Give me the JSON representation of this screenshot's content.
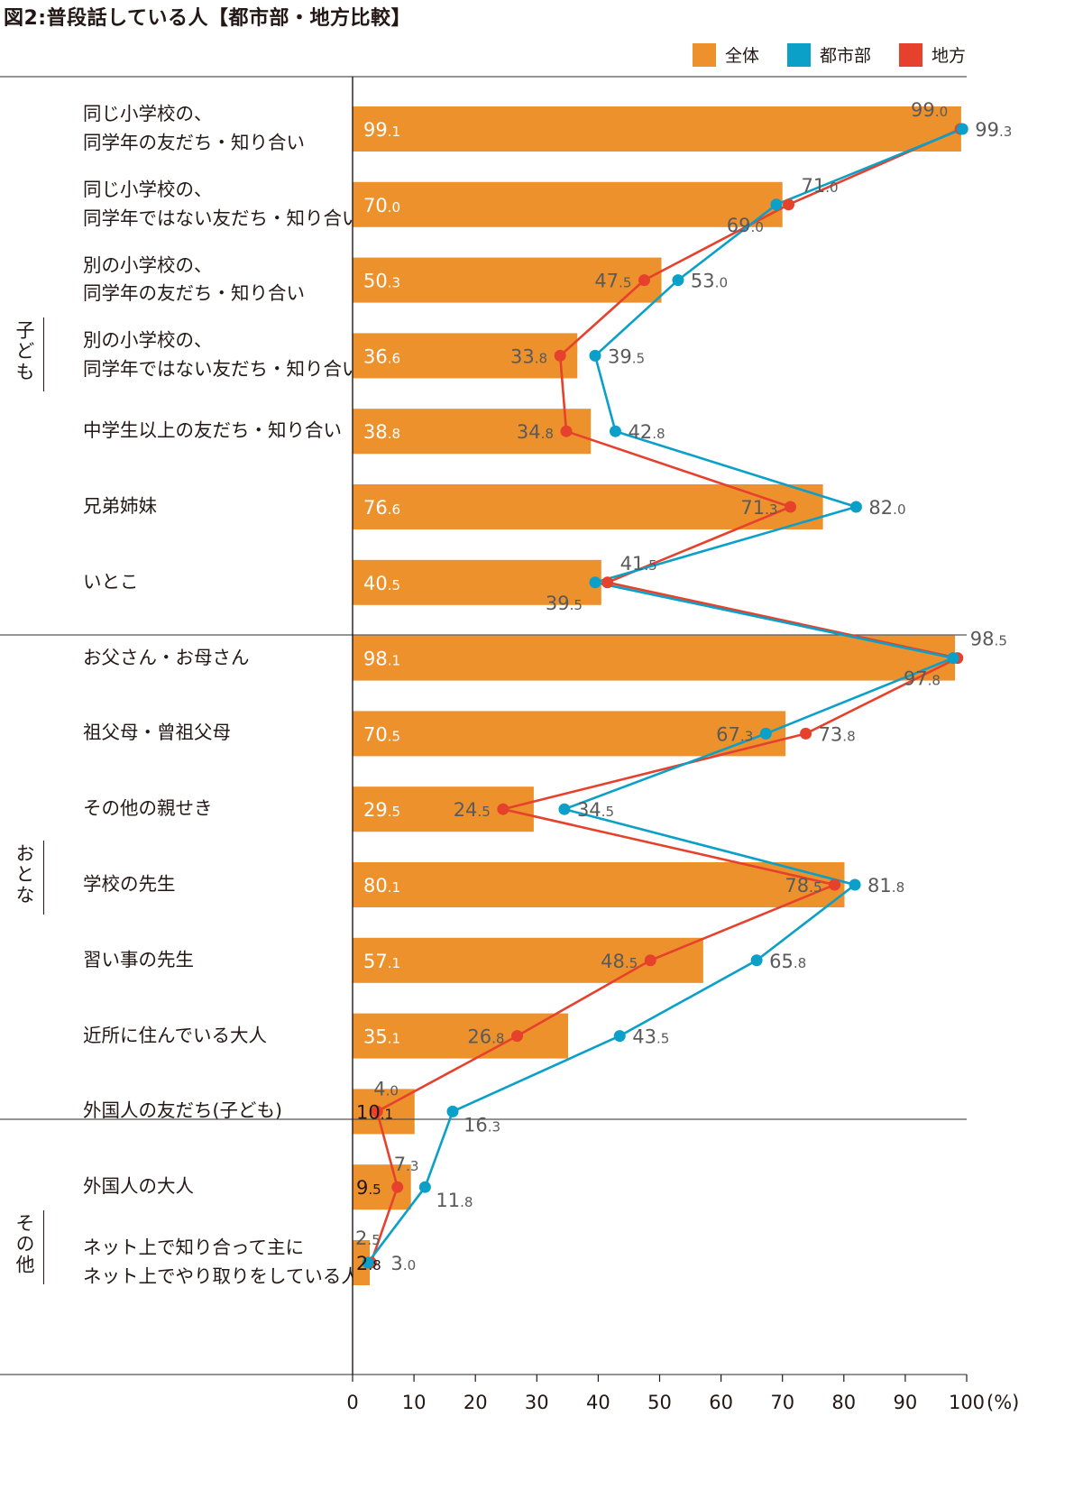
{
  "title": "図2:普段話している人【都市部・地方比較】",
  "colors": {
    "overall": "#ED912D",
    "urban": "#0AA0C8",
    "rural": "#E6412D",
    "axis": "#231815",
    "labels": "#5A5A5A"
  },
  "legend": [
    {
      "key": "overall",
      "label": "全体"
    },
    {
      "key": "urban",
      "label": "都市部"
    },
    {
      "key": "rural",
      "label": "地方"
    }
  ],
  "groups": [
    {
      "name": "子ども"
    },
    {
      "name": "おとな"
    },
    {
      "name": "その他"
    }
  ],
  "chart_data": {
    "type": "bar",
    "title": "図2:普段話している人【都市部・地方比較】",
    "categories": [
      "同じ小学校の、\n同学年の友だち・知り合い",
      "同じ小学校の、\n同学年ではない友だち・知り合い",
      "別の小学校の、\n同学年の友だち・知り合い",
      "別の小学校の、\n同学年ではない友だち・知り合い",
      "中学生以上の友だち・知り合い",
      "兄弟姉妹",
      "いとこ",
      "お父さん・お母さん",
      "祖父母・曾祖父母",
      "その他の親せき",
      "学校の先生",
      "習い事の先生",
      "近所に住んでいる大人",
      "外国人の友だち(子ども)",
      "外国人の大人",
      "ネット上で知り合って主に\nネット上でやり取りをしている人"
    ],
    "series": [
      {
        "name": "全体",
        "style": "bar",
        "values": [
          99.1,
          70.0,
          50.3,
          36.6,
          38.8,
          76.6,
          40.5,
          98.1,
          70.5,
          29.5,
          80.1,
          57.1,
          35.1,
          10.1,
          9.5,
          2.8
        ]
      },
      {
        "name": "都市部",
        "style": "line",
        "values": [
          99.3,
          69.0,
          53.0,
          39.5,
          42.8,
          82.0,
          39.5,
          97.8,
          67.3,
          34.5,
          81.8,
          65.8,
          43.5,
          16.3,
          11.8,
          2.5
        ]
      },
      {
        "name": "地方",
        "style": "line",
        "values": [
          99.0,
          71.0,
          47.5,
          33.8,
          34.8,
          71.3,
          41.5,
          98.5,
          73.8,
          24.5,
          78.5,
          48.5,
          26.8,
          4.0,
          7.3,
          3.0
        ]
      }
    ],
    "xlim": [
      0,
      100
    ],
    "xticks": [
      0,
      10,
      20,
      30,
      40,
      50,
      60,
      70,
      80,
      90,
      100
    ],
    "xunit": "(%)",
    "legend_position": "top-right",
    "grid": false
  }
}
